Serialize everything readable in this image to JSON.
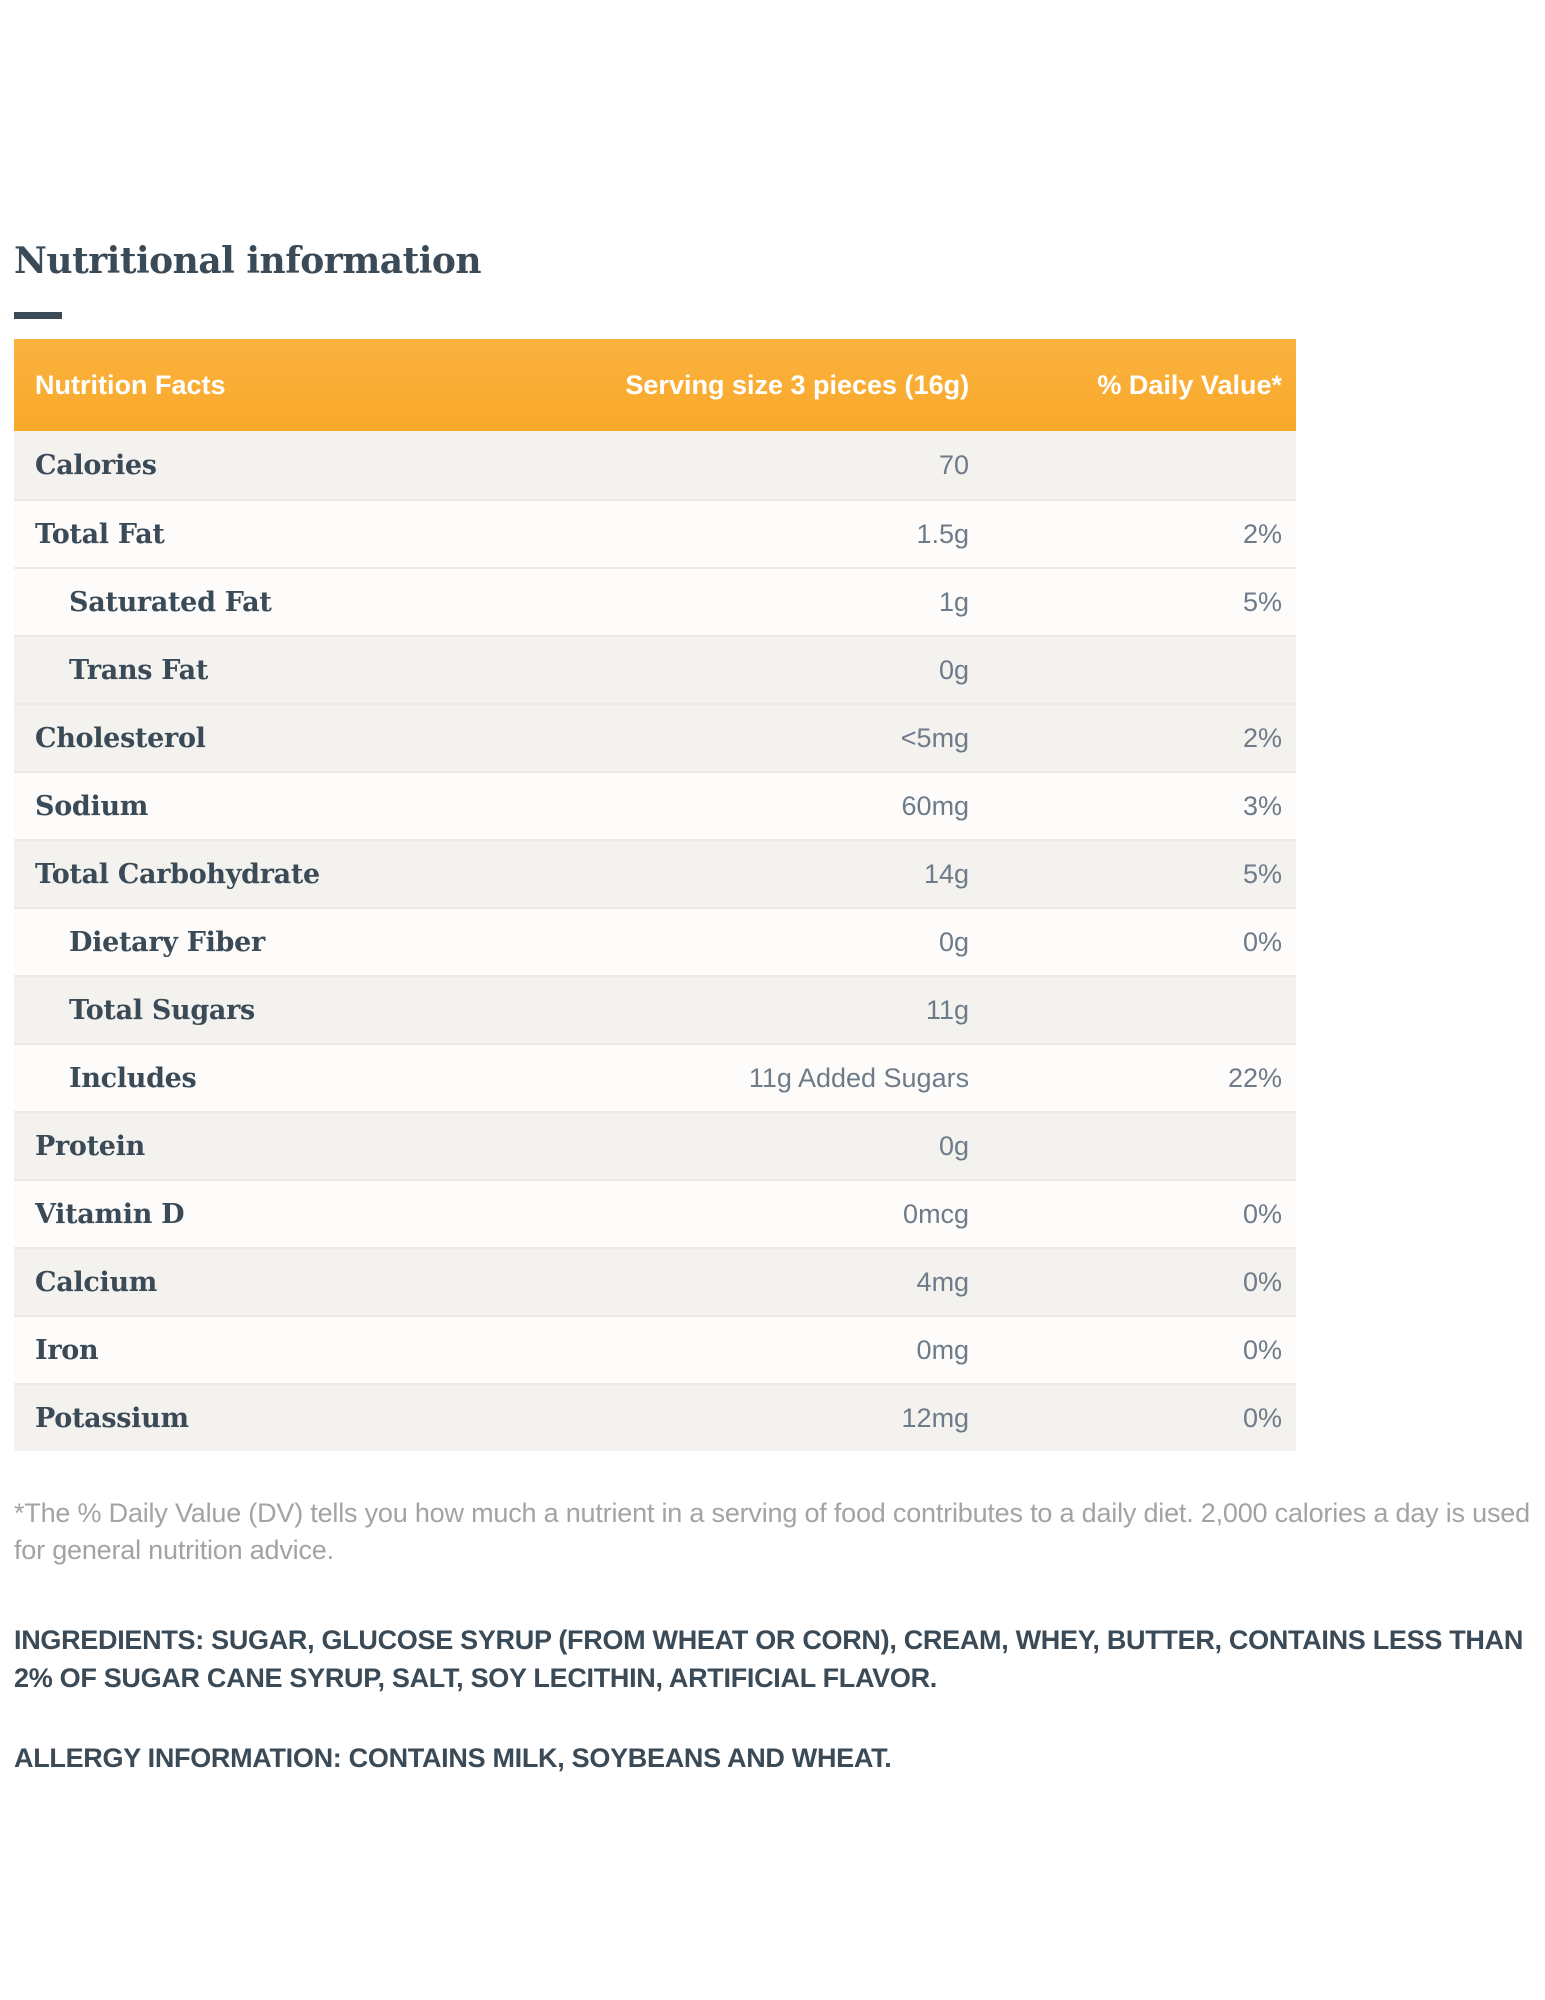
{
  "page": {
    "title": "Nutritional information"
  },
  "table": {
    "header": {
      "facts": "Nutrition Facts",
      "serving": "Serving size 3 pieces (16g)",
      "daily_value": "% Daily Value*"
    },
    "rows": [
      {
        "label": "Calories",
        "value": "70",
        "dv": "",
        "indent": false,
        "shaded": true
      },
      {
        "label": "Total Fat",
        "value": "1.5g",
        "dv": "2%",
        "indent": false,
        "shaded": false
      },
      {
        "label": "Saturated Fat",
        "value": "1g",
        "dv": "5%",
        "indent": true,
        "shaded": false
      },
      {
        "label": "Trans Fat",
        "value": "0g",
        "dv": "",
        "indent": true,
        "shaded": true
      },
      {
        "label": "Cholesterol",
        "value": "<5mg",
        "dv": "2%",
        "indent": false,
        "shaded": true
      },
      {
        "label": "Sodium",
        "value": "60mg",
        "dv": "3%",
        "indent": false,
        "shaded": false
      },
      {
        "label": "Total Carbohydrate",
        "value": "14g",
        "dv": "5%",
        "indent": false,
        "shaded": true
      },
      {
        "label": "Dietary Fiber",
        "value": "0g",
        "dv": "0%",
        "indent": true,
        "shaded": false
      },
      {
        "label": "Total Sugars",
        "value": "11g",
        "dv": "",
        "indent": true,
        "shaded": true
      },
      {
        "label": "Includes",
        "value": "11g Added Sugars",
        "dv": "22%",
        "indent": true,
        "shaded": false
      },
      {
        "label": "Protein",
        "value": "0g",
        "dv": "",
        "indent": false,
        "shaded": true
      },
      {
        "label": "Vitamin D",
        "value": "0mcg",
        "dv": "0%",
        "indent": false,
        "shaded": false
      },
      {
        "label": "Calcium",
        "value": "4mg",
        "dv": "0%",
        "indent": false,
        "shaded": true
      },
      {
        "label": "Iron",
        "value": "0mg",
        "dv": "0%",
        "indent": false,
        "shaded": false
      },
      {
        "label": "Potassium",
        "value": "12mg",
        "dv": "0%",
        "indent": false,
        "shaded": true
      }
    ]
  },
  "footnote": "*The % Daily Value (DV) tells you how much a nutrient in a serving of food contributes to a daily diet. 2,000 calories a day is used for general nutrition advice.",
  "ingredients": "INGREDIENTS: SUGAR, GLUCOSE SYRUP (FROM WHEAT OR CORN), CREAM, WHEY, BUTTER, CONTAINS LESS THAN 2% OF SUGAR CANE SYRUP, SALT, SOY LECITHIN, ARTIFICIAL FLAVOR.",
  "allergy": "ALLERGY INFORMATION: CONTAINS MILK, SOYBEANS AND WHEAT.",
  "colors": {
    "accent_orange": "#F8A929",
    "accent_orange_light": "#FBB240",
    "heading_dark": "#3A4A57",
    "value_gray": "#6E7B88",
    "row_shaded": "#F4F2EF",
    "row_unshaded": "#FDFCFB",
    "footnote_gray": "#A3A3A1"
  }
}
